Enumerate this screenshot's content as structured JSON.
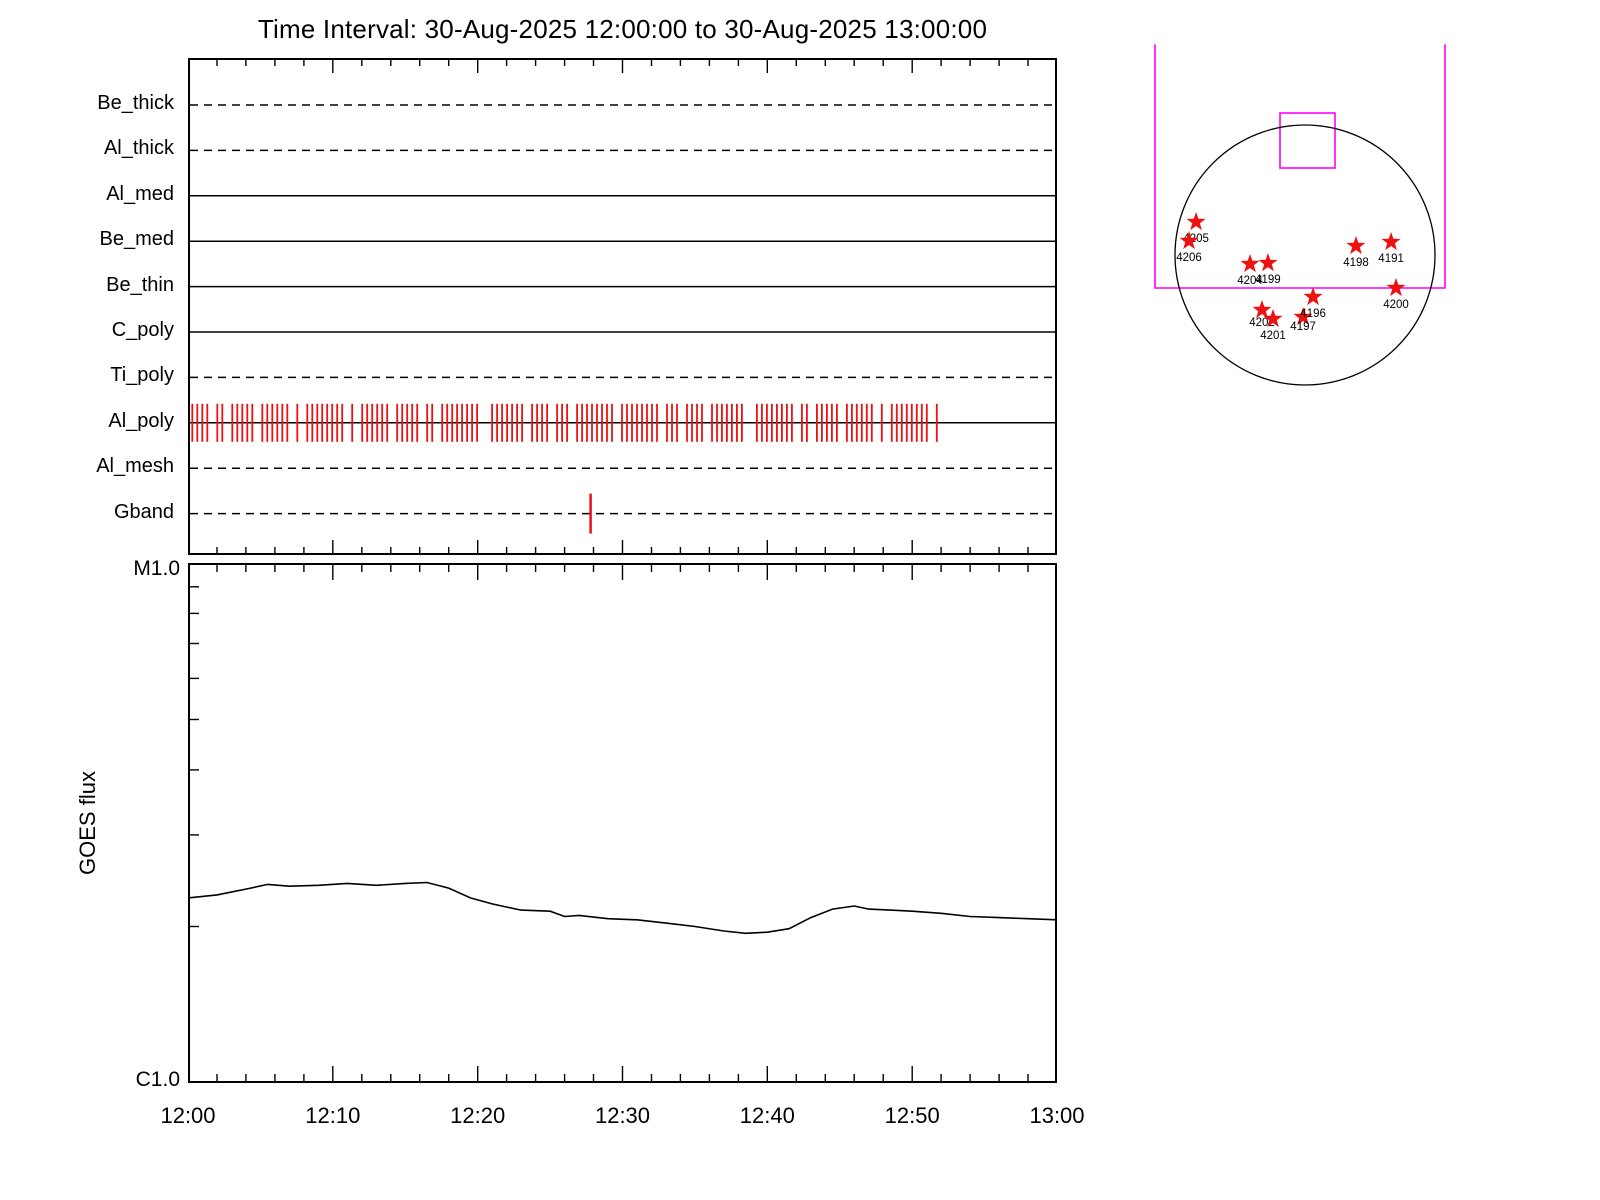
{
  "title": "Time Interval: 30-Aug-2025 12:00:00 to 30-Aug-2025 13:00:00",
  "colors": {
    "exposure_red": "#ee1111",
    "star_red": "#ee1111",
    "fov_magenta": "#ff00ff",
    "line_black": "#000000"
  },
  "chart_data": [
    {
      "type": "scatter",
      "name": "xrt-exposure-timeline",
      "x_unit": "minutes after 12:00:00",
      "x_range": [
        0,
        60
      ],
      "channels": [
        {
          "label": "Be_thick",
          "line_style": "dashed",
          "exposures": []
        },
        {
          "label": "Al_thick",
          "line_style": "dashed",
          "exposures": []
        },
        {
          "label": "Al_med",
          "line_style": "solid",
          "exposures": []
        },
        {
          "label": "Be_med",
          "line_style": "solid",
          "exposures": []
        },
        {
          "label": "Be_thin",
          "line_style": "solid",
          "exposures": []
        },
        {
          "label": "C_poly",
          "line_style": "solid",
          "exposures": []
        },
        {
          "label": "Ti_poly",
          "line_style": "dashed",
          "exposures": []
        },
        {
          "label": "Al_poly",
          "line_style": "solid",
          "exposures": [],
          "exposures_dense": {
            "start_min": 0.3,
            "end_min": 51.7,
            "approx_count": 150,
            "note": "dense barcode of red exposure tick marks"
          }
        },
        {
          "label": "Al_mesh",
          "line_style": "dashed",
          "exposures": []
        },
        {
          "label": "Gband",
          "line_style": "dashed",
          "exposures": [
            27.8
          ]
        }
      ]
    },
    {
      "type": "line",
      "name": "goes-flux",
      "ylabel": "GOES flux",
      "y_axis_top_label": "M1.0",
      "y_axis_bottom_label": "C1.0",
      "y_scale": "log",
      "ylim": [
        1e-06,
        1e-05
      ],
      "x_unit": "minutes after 12:00:00",
      "xtick_labels": [
        "12:00",
        "12:10",
        "12:20",
        "12:30",
        "12:40",
        "12:50",
        "13:00"
      ],
      "x": [
        0,
        2,
        4,
        5.5,
        7,
        9,
        11,
        13,
        15,
        16.5,
        18,
        19.5,
        21,
        23,
        25,
        26,
        27,
        29,
        31,
        33,
        35,
        37,
        38.5,
        40,
        41.5,
        43,
        44.5,
        46,
        47,
        48.5,
        50,
        52,
        54,
        56,
        58,
        60
      ],
      "series": [
        {
          "name": "GOES flux",
          "unit": "C-class units (1e-6 W/m^2)",
          "values": [
            2.27,
            2.3,
            2.36,
            2.41,
            2.39,
            2.4,
            2.42,
            2.4,
            2.42,
            2.43,
            2.37,
            2.27,
            2.21,
            2.15,
            2.14,
            2.09,
            2.1,
            2.07,
            2.06,
            2.03,
            2.0,
            1.96,
            1.94,
            1.95,
            1.98,
            2.08,
            2.16,
            2.19,
            2.16,
            2.15,
            2.14,
            2.12,
            2.09,
            2.08,
            2.07,
            2.06
          ]
        }
      ]
    },
    {
      "type": "scatter",
      "name": "solar-disk-active-regions",
      "marker": "star",
      "points": [
        {
          "label": "4205",
          "fx": -0.838,
          "fy": -0.254
        },
        {
          "label": "4206",
          "fx": -0.892,
          "fy": -0.108
        },
        {
          "label": "4204",
          "fx": -0.423,
          "fy": 0.069
        },
        {
          "label": "4199",
          "fx": -0.285,
          "fy": 0.062
        },
        {
          "label": "4198",
          "fx": 0.392,
          "fy": -0.069
        },
        {
          "label": "4191",
          "fx": 0.662,
          "fy": -0.1
        },
        {
          "label": "4202",
          "fx": -0.331,
          "fy": 0.423,
          "label_dy": 12
        },
        {
          "label": "4201",
          "fx": -0.246,
          "fy": 0.492
        },
        {
          "label": "4197",
          "fx": -0.015,
          "fy": 0.477,
          "label_dy": 9
        },
        {
          "label": "4196",
          "fx": 0.062,
          "fy": 0.323
        },
        {
          "label": "4200",
          "fx": 0.7,
          "fy": 0.254
        }
      ],
      "overlays": {
        "fov_bracket": {
          "left_fx": -1.154,
          "right_fx": 1.077,
          "bottom_fy": 0.254,
          "top_fy": -1.62
        },
        "small_box": {
          "x1_fx": -0.192,
          "x2_fx": 0.231,
          "y1_fy": -1.092,
          "y2_fy": -0.669
        }
      }
    }
  ]
}
